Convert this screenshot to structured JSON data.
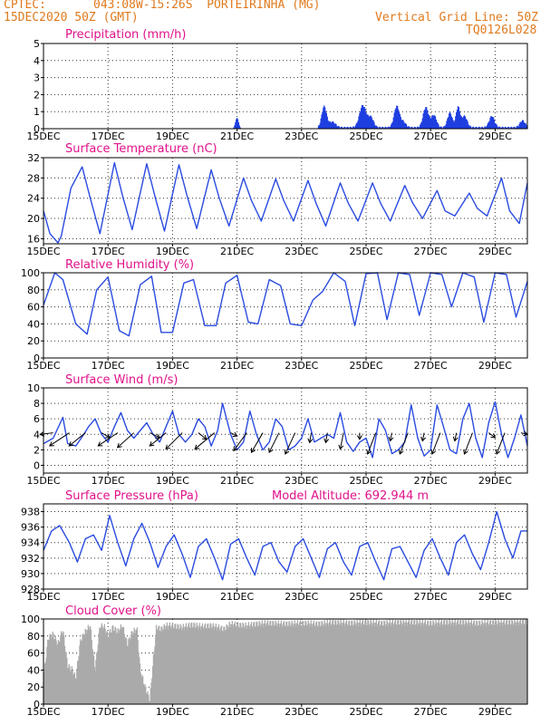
{
  "header": {
    "source": "CPTEC:",
    "location": "043:08W-15:26S  PORTEIRINHA (MG)",
    "run": "15DEC2020 50Z (GMT)",
    "grid_line": "Vertical Grid Line: 50Z",
    "code": "TQ0126L028"
  },
  "x_axis": {
    "ticks": [
      "15DEC",
      "17DEC",
      "19DEC",
      "21DEC",
      "23DEC",
      "25DEC",
      "27DEC",
      "29DEC"
    ],
    "range_days": [
      15,
      30
    ]
  },
  "chart_data": [
    {
      "type": "bar",
      "title": "Precipitation (mm/h)",
      "y_ticks": [
        0,
        1,
        2,
        3,
        4,
        5
      ],
      "ylim": [
        0,
        5
      ],
      "color": "#1f3fe0",
      "events": [
        {
          "day": 21.0,
          "peak": 1.0,
          "width": 0.12
        },
        {
          "day": 23.7,
          "peak": 1.9,
          "width": 0.18
        },
        {
          "day": 23.95,
          "peak": 0.5,
          "width": 0.25
        },
        {
          "day": 24.9,
          "peak": 2.0,
          "width": 0.25
        },
        {
          "day": 25.15,
          "peak": 0.9,
          "width": 0.2
        },
        {
          "day": 25.95,
          "peak": 1.9,
          "width": 0.2
        },
        {
          "day": 26.15,
          "peak": 0.5,
          "width": 0.2
        },
        {
          "day": 26.85,
          "peak": 1.8,
          "width": 0.2
        },
        {
          "day": 27.1,
          "peak": 1.1,
          "width": 0.2
        },
        {
          "day": 27.6,
          "peak": 1.3,
          "width": 0.18
        },
        {
          "day": 27.85,
          "peak": 1.8,
          "width": 0.15
        },
        {
          "day": 28.05,
          "peak": 1.0,
          "width": 0.2
        },
        {
          "day": 28.9,
          "peak": 1.0,
          "width": 0.2
        },
        {
          "day": 29.85,
          "peak": 0.6,
          "width": 0.2
        }
      ]
    },
    {
      "type": "line",
      "title": "Surface Temperature (nC)",
      "y_ticks": [
        16,
        20,
        24,
        28,
        32
      ],
      "ylim": [
        15,
        32
      ],
      "color": "#2a4be0",
      "series": [
        {
          "x": [
            15.0,
            15.2,
            15.45,
            15.55,
            15.85,
            16.2,
            16.45,
            16.75,
            17.2,
            17.45,
            17.75,
            18.2,
            18.45,
            18.75,
            19.2,
            19.45,
            19.75,
            20.2,
            20.45,
            20.75,
            21.2,
            21.45,
            21.75,
            22.2,
            22.45,
            22.75,
            23.2,
            23.45,
            23.75,
            24.2,
            24.45,
            24.75,
            25.2,
            25.45,
            25.75,
            26.2,
            26.45,
            26.75,
            27.2,
            27.45,
            27.75,
            28.2,
            28.45,
            28.75,
            29.2,
            29.45,
            29.75,
            30.0
          ],
          "y": [
            21.5,
            17.0,
            15.2,
            16.5,
            26.0,
            30.2,
            24.0,
            17.0,
            31.0,
            24.5,
            17.8,
            30.8,
            24.5,
            17.5,
            30.6,
            24.5,
            18.0,
            29.6,
            24.0,
            18.5,
            28.0,
            23.5,
            19.5,
            27.8,
            23.5,
            19.5,
            27.5,
            23.0,
            18.5,
            27.0,
            23.0,
            19.5,
            27.0,
            23.0,
            19.5,
            26.5,
            23.0,
            20.0,
            25.5,
            21.5,
            20.5,
            25.0,
            22.0,
            20.5,
            28.0,
            21.5,
            19.0,
            27.0
          ]
        }
      ]
    },
    {
      "type": "line",
      "title": "Relative Humidity (%)",
      "y_ticks": [
        0,
        20,
        40,
        60,
        80,
        100
      ],
      "ylim": [
        0,
        100
      ],
      "color": "#2a4be0",
      "series": [
        {
          "x": [
            15.0,
            15.35,
            15.6,
            16.0,
            16.35,
            16.65,
            17.0,
            17.35,
            17.65,
            18.0,
            18.35,
            18.65,
            19.0,
            19.35,
            19.65,
            20.0,
            20.35,
            20.65,
            21.0,
            21.35,
            21.65,
            22.0,
            22.35,
            22.65,
            23.0,
            23.35,
            23.65,
            24.0,
            24.35,
            24.65,
            25.0,
            25.35,
            25.65,
            26.0,
            26.35,
            26.65,
            27.0,
            27.35,
            27.65,
            28.0,
            28.35,
            28.65,
            29.0,
            29.35,
            29.65,
            30.0
          ],
          "y": [
            62,
            100,
            92,
            40,
            28,
            80,
            95,
            32,
            26,
            86,
            96,
            30,
            30,
            88,
            92,
            38,
            38,
            88,
            97,
            42,
            40,
            92,
            85,
            40,
            38,
            68,
            78,
            100,
            90,
            38,
            99,
            100,
            45,
            100,
            98,
            50,
            100,
            98,
            60,
            100,
            95,
            42,
            100,
            98,
            48,
            90
          ]
        }
      ]
    },
    {
      "type": "line",
      "title": "Surface Wind (m/s)",
      "y_ticks": [
        0,
        2,
        4,
        6,
        8,
        10
      ],
      "ylim": [
        -1,
        10
      ],
      "color": "#2a4be0",
      "series": [
        {
          "x": [
            15.0,
            15.3,
            15.6,
            15.75,
            16.0,
            16.25,
            16.4,
            16.6,
            16.8,
            17.0,
            17.2,
            17.4,
            17.6,
            17.8,
            18.0,
            18.2,
            18.4,
            18.6,
            18.8,
            19.0,
            19.2,
            19.4,
            19.6,
            19.8,
            20.0,
            20.2,
            20.4,
            20.55,
            20.8,
            21.0,
            21.2,
            21.4,
            21.6,
            21.8,
            22.0,
            22.2,
            22.4,
            22.6,
            22.8,
            23.0,
            23.2,
            23.4,
            23.6,
            23.8,
            24.0,
            24.2,
            24.4,
            24.6,
            24.8,
            25.0,
            25.2,
            25.4,
            25.6,
            25.8,
            26.0,
            26.2,
            26.4,
            26.6,
            26.8,
            27.0,
            27.2,
            27.4,
            27.6,
            27.8,
            28.0,
            28.2,
            28.4,
            28.6,
            28.8,
            29.0,
            29.2,
            29.4,
            29.6,
            29.8,
            30.0
          ],
          "y": [
            2.8,
            3.5,
            6.2,
            2.8,
            2.5,
            4.0,
            5.0,
            6.0,
            4.0,
            3.0,
            5.0,
            6.8,
            4.5,
            3.5,
            4.5,
            5.5,
            4.0,
            3.0,
            5.0,
            7.0,
            4.0,
            3.0,
            4.0,
            6.0,
            5.0,
            2.5,
            4.5,
            8.0,
            4.0,
            2.0,
            3.0,
            7.0,
            4.0,
            2.0,
            3.0,
            6.0,
            5.0,
            2.0,
            2.5,
            3.5,
            6.0,
            3.0,
            3.5,
            4.0,
            3.5,
            6.8,
            3.0,
            1.8,
            3.0,
            3.5,
            1.0,
            6.0,
            4.5,
            1.5,
            2.0,
            3.0,
            7.8,
            3.5,
            1.2,
            2.0,
            7.8,
            5.0,
            2.0,
            1.5,
            6.0,
            8.0,
            3.5,
            1.0,
            5.5,
            8.2,
            4.0,
            1.0,
            3.5,
            6.5,
            2.5
          ]
        }
      ],
      "vectors": [
        {
          "day": 15.3,
          "u": 0.8,
          "v": 0.1
        },
        {
          "day": 15.8,
          "u": 1.2,
          "v": 0.8
        },
        {
          "day": 16.3,
          "u": 1.0,
          "v": 0.8
        },
        {
          "day": 16.8,
          "u": -0.5,
          "v": 0.3
        },
        {
          "day": 17.3,
          "u": 1.2,
          "v": 0.8
        },
        {
          "day": 17.8,
          "u": 1.0,
          "v": 0.9
        },
        {
          "day": 18.3,
          "u": -0.6,
          "v": 0.3
        },
        {
          "day": 18.8,
          "u": 1.0,
          "v": 0.8
        },
        {
          "day": 19.3,
          "u": 1.0,
          "v": 1.0
        },
        {
          "day": 19.8,
          "u": -0.5,
          "v": 0.4
        },
        {
          "day": 20.3,
          "u": 1.2,
          "v": 1.0
        },
        {
          "day": 20.8,
          "u": -0.4,
          "v": 0.2
        },
        {
          "day": 21.3,
          "u": 0.8,
          "v": 1.1
        },
        {
          "day": 21.8,
          "u": 0.7,
          "v": 1.2
        },
        {
          "day": 22.3,
          "u": 0.6,
          "v": 1.2
        },
        {
          "day": 22.8,
          "u": 0.6,
          "v": 1.3
        },
        {
          "day": 23.3,
          "u": 0.1,
          "v": 0.6
        },
        {
          "day": 23.8,
          "u": 0.1,
          "v": 0.6
        },
        {
          "day": 24.3,
          "u": 0.2,
          "v": 1.0
        },
        {
          "day": 24.8,
          "u": 0.0,
          "v": 0.4
        },
        {
          "day": 25.3,
          "u": 0.5,
          "v": 1.3
        },
        {
          "day": 25.8,
          "u": 0.1,
          "v": 0.5
        },
        {
          "day": 26.3,
          "u": 0.5,
          "v": 1.3
        },
        {
          "day": 26.8,
          "u": 0.1,
          "v": 0.5
        },
        {
          "day": 27.3,
          "u": 0.5,
          "v": 1.3
        },
        {
          "day": 27.8,
          "u": 0.1,
          "v": 0.5
        },
        {
          "day": 28.3,
          "u": 0.5,
          "v": 1.3
        },
        {
          "day": 28.8,
          "u": -0.4,
          "v": 0.3
        },
        {
          "day": 29.3,
          "u": 0.5,
          "v": 1.3
        },
        {
          "day": 29.8,
          "u": -0.4,
          "v": 0.1
        }
      ]
    },
    {
      "type": "line",
      "title": "Surface Pressure (hPa)",
      "annotation": "Model Altitude: 692.944 m",
      "y_ticks": [
        928,
        930,
        932,
        934,
        936,
        938
      ],
      "ylim": [
        928,
        939
      ],
      "color": "#2a4be0",
      "series": [
        {
          "x": [
            15.0,
            15.25,
            15.5,
            15.8,
            16.05,
            16.3,
            16.55,
            16.8,
            17.05,
            17.3,
            17.55,
            17.8,
            18.05,
            18.3,
            18.55,
            18.8,
            19.05,
            19.3,
            19.55,
            19.8,
            20.05,
            20.3,
            20.55,
            20.8,
            21.05,
            21.3,
            21.55,
            21.8,
            22.05,
            22.3,
            22.55,
            22.8,
            23.05,
            23.3,
            23.55,
            23.8,
            24.05,
            24.3,
            24.55,
            24.8,
            25.05,
            25.3,
            25.55,
            25.8,
            26.05,
            26.3,
            26.55,
            26.8,
            27.05,
            27.3,
            27.55,
            27.8,
            28.05,
            28.3,
            28.55,
            28.8,
            29.05,
            29.3,
            29.55,
            29.8,
            30.0
          ],
          "y": [
            933.0,
            935.5,
            936.2,
            934.0,
            931.5,
            934.5,
            935.0,
            933.0,
            937.5,
            934.0,
            931.0,
            934.5,
            936.5,
            934.0,
            930.8,
            933.5,
            935.0,
            932.5,
            929.5,
            933.5,
            934.5,
            932.0,
            929.2,
            933.8,
            934.5,
            932.0,
            929.8,
            933.5,
            934.0,
            931.5,
            930.2,
            933.5,
            934.5,
            932.0,
            929.5,
            933.2,
            934.0,
            931.5,
            929.8,
            933.5,
            934.0,
            931.5,
            929.2,
            933.2,
            933.5,
            931.5,
            929.5,
            933.0,
            934.5,
            932.0,
            929.8,
            934.0,
            935.0,
            932.5,
            930.5,
            934.0,
            938.0,
            934.5,
            932.0,
            935.5,
            935.5
          ]
        }
      ]
    },
    {
      "type": "bar",
      "title": "Cloud Cover (%)",
      "y_ticks": [
        0,
        20,
        40,
        60,
        80,
        100
      ],
      "ylim": [
        0,
        100
      ],
      "color": "#aaaaaa",
      "series": [
        {
          "x": [
            15.0,
            15.15,
            15.3,
            15.45,
            15.6,
            15.75,
            15.9,
            16.0,
            16.15,
            16.3,
            16.45,
            16.6,
            16.75,
            16.9,
            17.0,
            17.15,
            17.3,
            17.45,
            17.6,
            17.75,
            17.9,
            18.0,
            18.15,
            18.3,
            18.4,
            18.5,
            18.65,
            18.8,
            19.0,
            19.3,
            19.6,
            19.9,
            20.2,
            20.4,
            20.6,
            20.8,
            21.0,
            21.3,
            21.6,
            22.0,
            22.5,
            23.0,
            23.5,
            24.0,
            24.5,
            25.0,
            25.5,
            26.0,
            26.5,
            27.0,
            27.5,
            28.0,
            28.5,
            29.0,
            29.5,
            30.0
          ],
          "y": [
            30,
            78,
            82,
            70,
            88,
            45,
            40,
            30,
            75,
            85,
            92,
            40,
            92,
            90,
            80,
            90,
            85,
            92,
            70,
            84,
            88,
            40,
            20,
            5,
            50,
            90,
            88,
            92,
            92,
            90,
            93,
            91,
            92,
            90,
            88,
            94,
            93,
            92,
            94,
            95,
            94,
            95,
            94,
            96,
            95,
            96,
            95,
            96,
            96,
            95,
            96,
            96,
            95,
            96,
            96,
            97
          ]
        }
      ]
    }
  ]
}
